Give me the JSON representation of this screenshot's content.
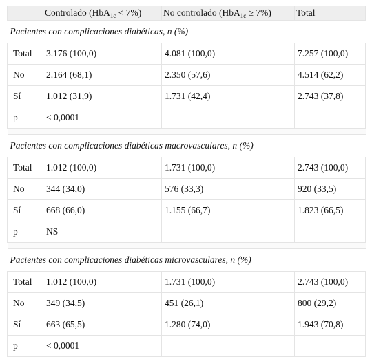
{
  "header": {
    "col1_prefix": "Controlado (HbA",
    "col1_sub": "1c",
    "col1_suffix": " < 7%)",
    "col2_prefix": "No controlado (HbA",
    "col2_sub": "1c",
    "col2_suffix": " ≥ 7%)",
    "col3": "Total"
  },
  "sections": [
    {
      "title": "Pacientes con complicaciones diabéticas, n (%)",
      "rows": [
        {
          "label": "Total",
          "controlado": "3.176 (100,0)",
          "no_controlado": "4.081 (100,0)",
          "total": "7.257 (100,0)"
        },
        {
          "label": "No",
          "controlado": "2.164 (68,1)",
          "no_controlado": "2.350 (57,6)",
          "total": "4.514 (62,2)"
        },
        {
          "label": "Sí",
          "controlado": "1.012 (31,9)",
          "no_controlado": "1.731 (42,4)",
          "total": "2.743 (37,8)"
        },
        {
          "label": "p",
          "controlado": "< 0,0001",
          "no_controlado": "",
          "total": ""
        }
      ]
    },
    {
      "title": "Pacientes con complicaciones diabéticas macrovasculares, n (%)",
      "rows": [
        {
          "label": "Total",
          "controlado": "1.012 (100,0)",
          "no_controlado": "1.731 (100,0)",
          "total": "2.743 (100,0)"
        },
        {
          "label": "No",
          "controlado": "344 (34,0)",
          "no_controlado": "576 (33,3)",
          "total": "920 (33,5)"
        },
        {
          "label": "Sí",
          "controlado": "668 (66,0)",
          "no_controlado": "1.155 (66,7)",
          "total": "1.823 (66,5)"
        },
        {
          "label": "p",
          "controlado": "NS",
          "no_controlado": "",
          "total": ""
        }
      ]
    },
    {
      "title": "Pacientes con complicaciones diabéticas microvasculares, n (%)",
      "rows": [
        {
          "label": "Total",
          "controlado": "1.012 (100,0)",
          "no_controlado": "1.731 (100,0)",
          "total": "2.743 (100,0)"
        },
        {
          "label": "No",
          "controlado": "349 (34,5)",
          "no_controlado": "451 (26,1)",
          "total": "800 (29,2)"
        },
        {
          "label": "Sí",
          "controlado": "663 (65,5)",
          "no_controlado": "1.280 (74,0)",
          "total": "1.943 (70,8)"
        },
        {
          "label": "p",
          "controlado": "< 0,0001",
          "no_controlado": "",
          "total": ""
        }
      ]
    }
  ]
}
